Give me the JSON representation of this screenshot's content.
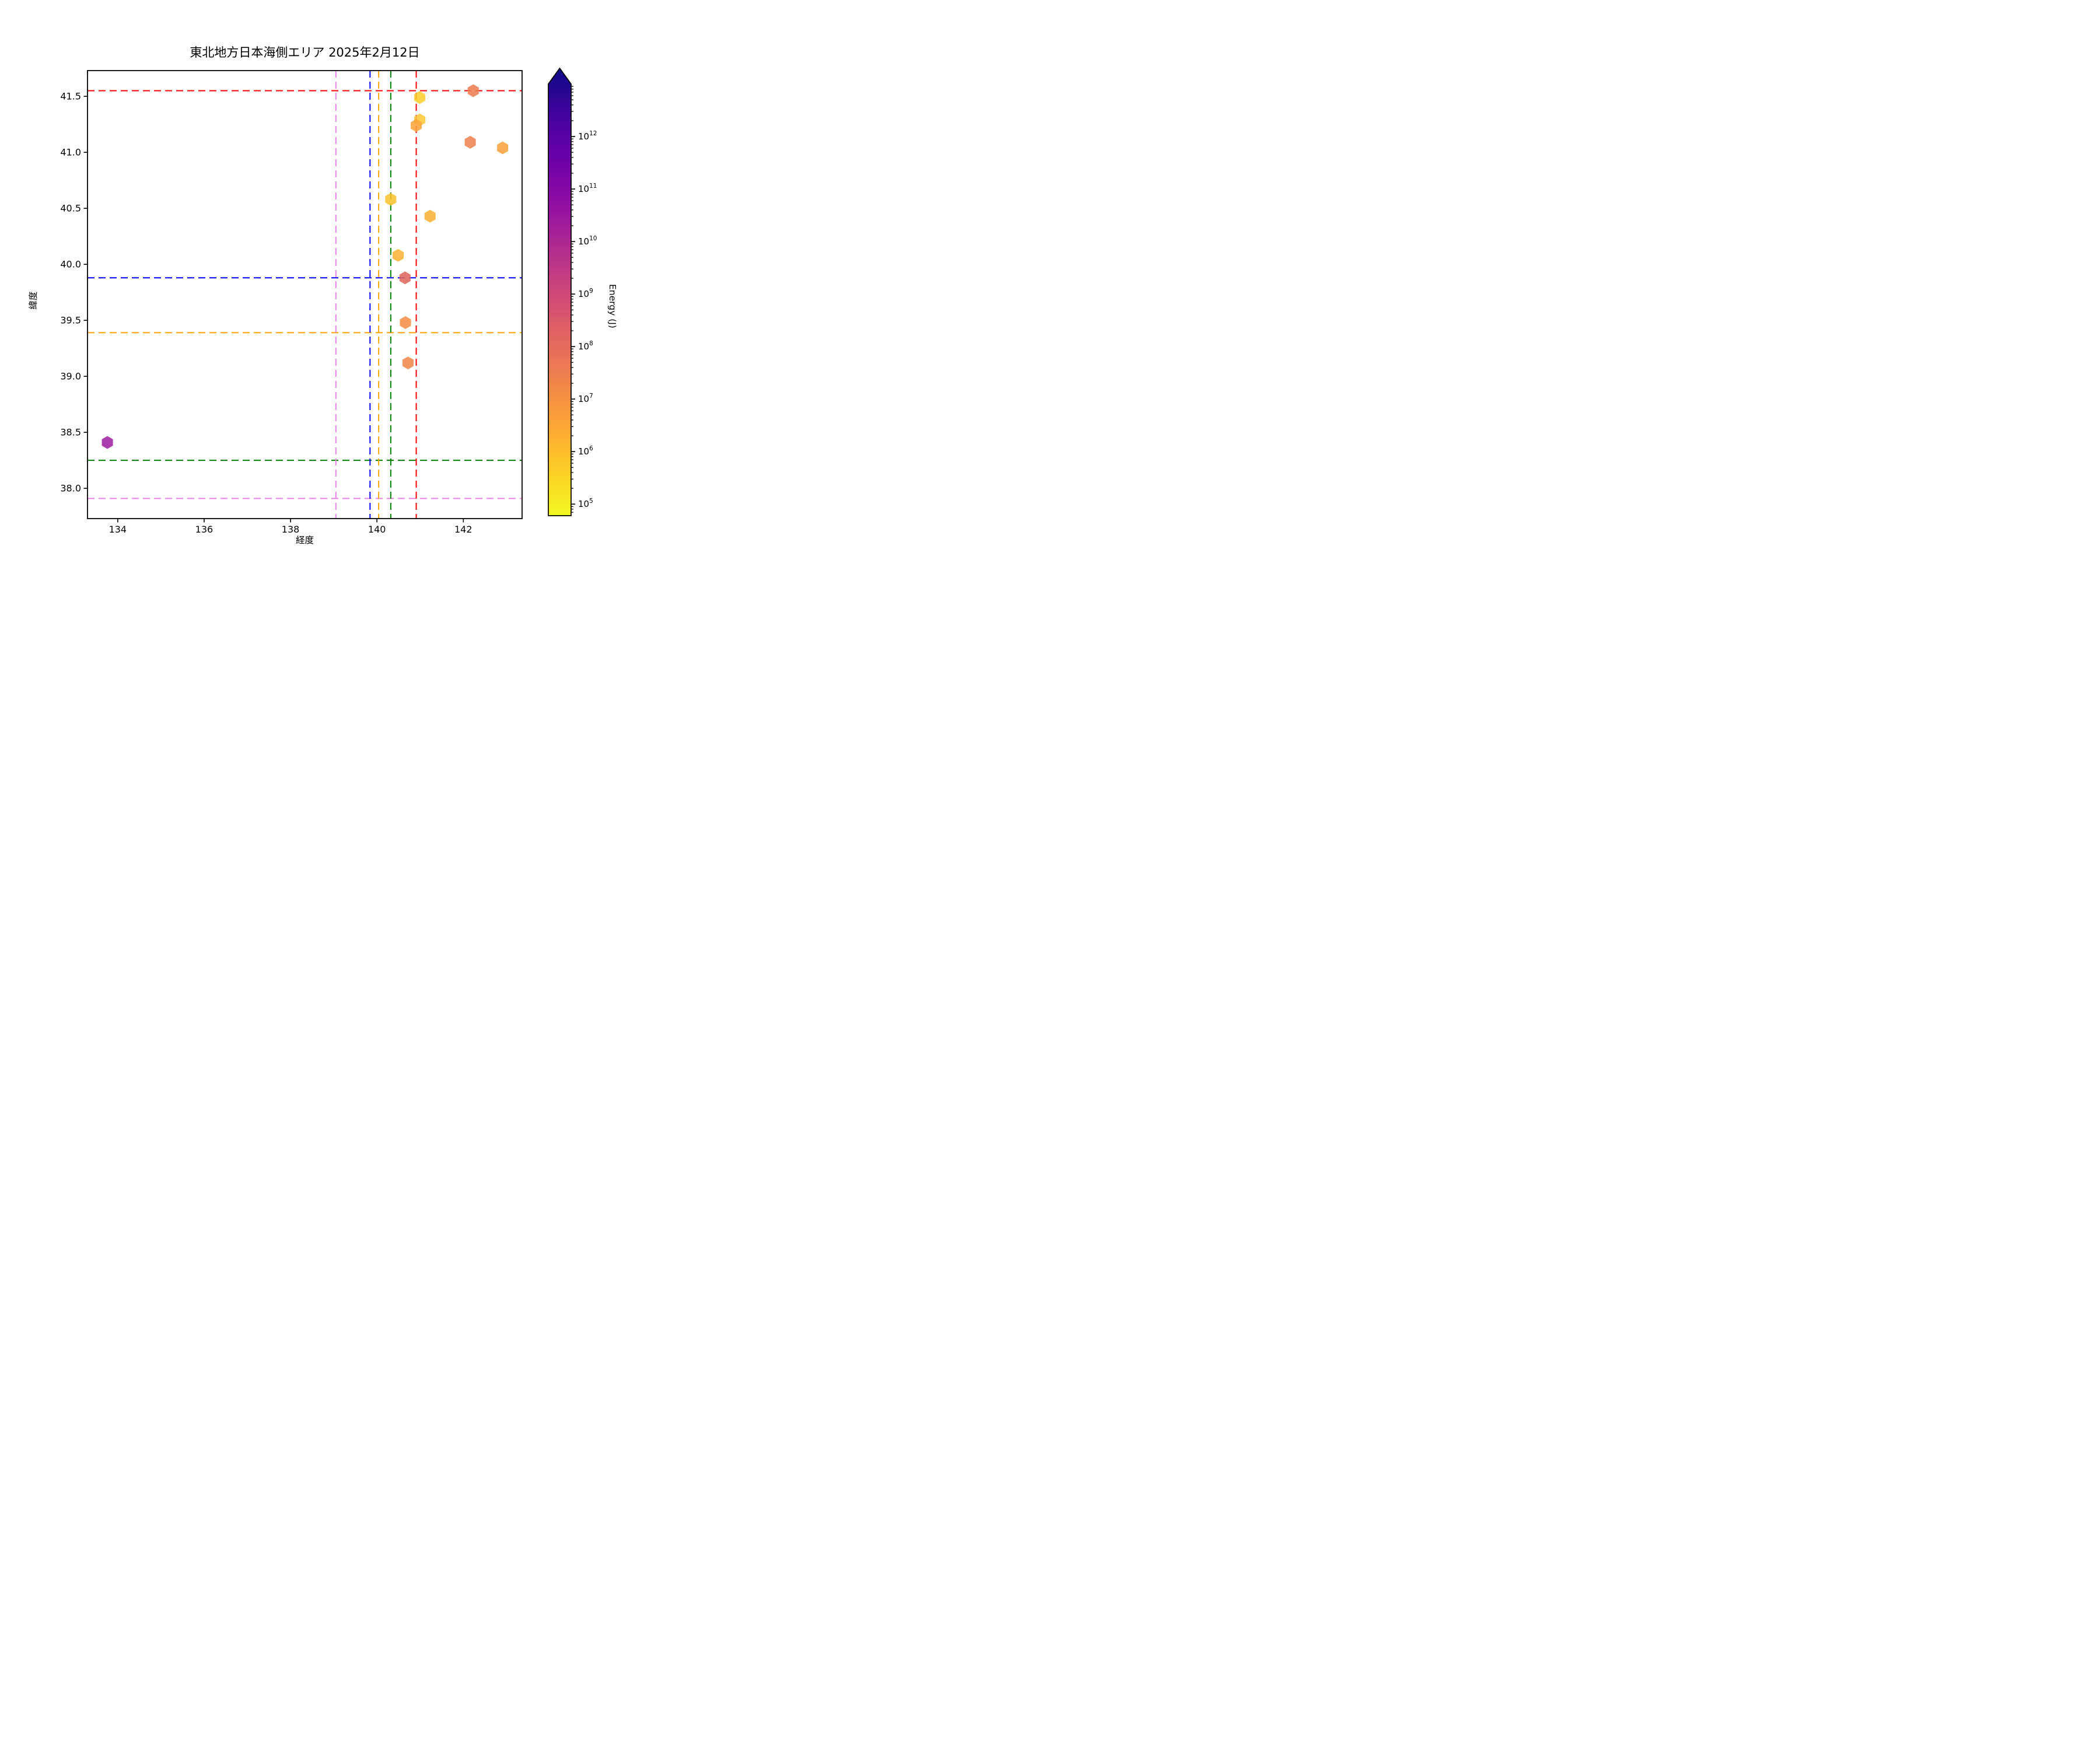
{
  "title": "東北地方日本海側エリア 2025年2月12日",
  "chart_data": {
    "type": "scatter",
    "marker": "hexagon",
    "title": "東北地方日本海側エリア 2025年2月12日",
    "xlabel": "経度",
    "ylabel": "緯度",
    "xlim": [
      133.3,
      143.36
    ],
    "ylim": [
      37.73,
      41.73
    ],
    "xticks": [
      134,
      136,
      138,
      140,
      142
    ],
    "yticks": [
      41.5,
      41.0,
      40.5,
      40.0,
      39.5,
      39.0,
      38.5,
      38.0
    ],
    "grid": false,
    "points": [
      {
        "lon": 142.23,
        "lat": 41.55,
        "color": "#ed7e50"
      },
      {
        "lon": 140.99,
        "lat": 41.49,
        "color": "#fccf2e"
      },
      {
        "lon": 140.99,
        "lat": 41.29,
        "color": "#fcc83a"
      },
      {
        "lon": 140.91,
        "lat": 41.24,
        "color": "#faa43c"
      },
      {
        "lon": 142.16,
        "lat": 41.09,
        "color": "#ee8352"
      },
      {
        "lon": 142.91,
        "lat": 41.04,
        "color": "#f9a23c"
      },
      {
        "lon": 140.32,
        "lat": 40.58,
        "color": "#fcc22e"
      },
      {
        "lon": 141.23,
        "lat": 40.43,
        "color": "#fbb135"
      },
      {
        "lon": 140.49,
        "lat": 40.08,
        "color": "#fbb237"
      },
      {
        "lon": 140.65,
        "lat": 39.88,
        "color": "#df665c"
      },
      {
        "lon": 140.66,
        "lat": 39.48,
        "color": "#f48d46"
      },
      {
        "lon": 140.72,
        "lat": 39.12,
        "color": "#f0884a"
      },
      {
        "lon": 133.76,
        "lat": 38.41,
        "color": "#9e21a3"
      }
    ],
    "reference_lines": {
      "horizontal": [
        {
          "lat": 41.55,
          "color": "#ff0000"
        },
        {
          "lat": 39.88,
          "color": "#0000ff"
        },
        {
          "lat": 39.39,
          "color": "#ffa500"
        },
        {
          "lat": 38.25,
          "color": "#008000"
        },
        {
          "lat": 37.91,
          "color": "#ee82ee"
        }
      ],
      "vertical": [
        {
          "lon": 139.05,
          "color": "#ee82ee"
        },
        {
          "lon": 139.84,
          "color": "#0000ff"
        },
        {
          "lon": 140.04,
          "color": "#ffa500"
        },
        {
          "lon": 140.32,
          "color": "#008000"
        },
        {
          "lon": 140.91,
          "color": "#ff0000"
        }
      ],
      "style": "dashed"
    },
    "colorbar": {
      "label": "Energy (J)",
      "scale": "log",
      "tick_exponents": [
        12,
        11,
        10,
        9,
        8,
        7,
        6,
        5
      ],
      "range_exponents": [
        4.78,
        13
      ],
      "extend": "max",
      "gradient_top_to_bottom": [
        "#0d0887",
        "#41049d",
        "#6a00a8",
        "#8f0da4",
        "#b12a90",
        "#cc4778",
        "#e16462",
        "#f2844b",
        "#fca636",
        "#fcce25",
        "#f0f921"
      ]
    }
  }
}
